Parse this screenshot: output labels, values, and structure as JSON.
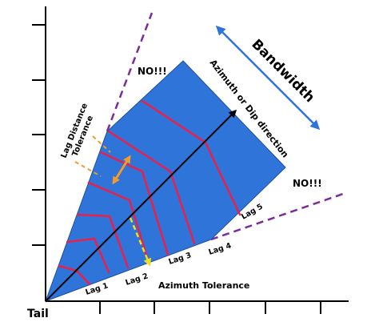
{
  "labels": {
    "tail": "Tail",
    "bandwidth": "Bandwidth",
    "direction": "Azimuth or Dip direction",
    "lag_distance_tolerance_1": "Lag Distance",
    "lag_distance_tolerance_2": "Tolerance",
    "azimuth_tolerance": "Azimuth Tolerance",
    "no_upper": "NO!!!",
    "no_right": "NO!!!",
    "lags": [
      "Lag 1",
      "Lag 2",
      "Lag 3",
      "Lag 4",
      "Lag 5"
    ]
  },
  "colors": {
    "search_window": "#2f74d8",
    "lag_lines": "#e8204a",
    "forbidden_lines": "#7a2c99",
    "bandwidth_arrow": "#2f74d8",
    "lag_tolerance_lines": "#f39a2e",
    "azimuth_tolerance_arrow": "#e8e020",
    "axis": "#000000"
  },
  "icons": {
    "bandwidth_arrow": "double-arrow-icon",
    "lag_tolerance_arrow": "double-arrow-icon",
    "direction_arrow": "arrow-icon",
    "azimuth_arrow": "arrow-icon"
  }
}
